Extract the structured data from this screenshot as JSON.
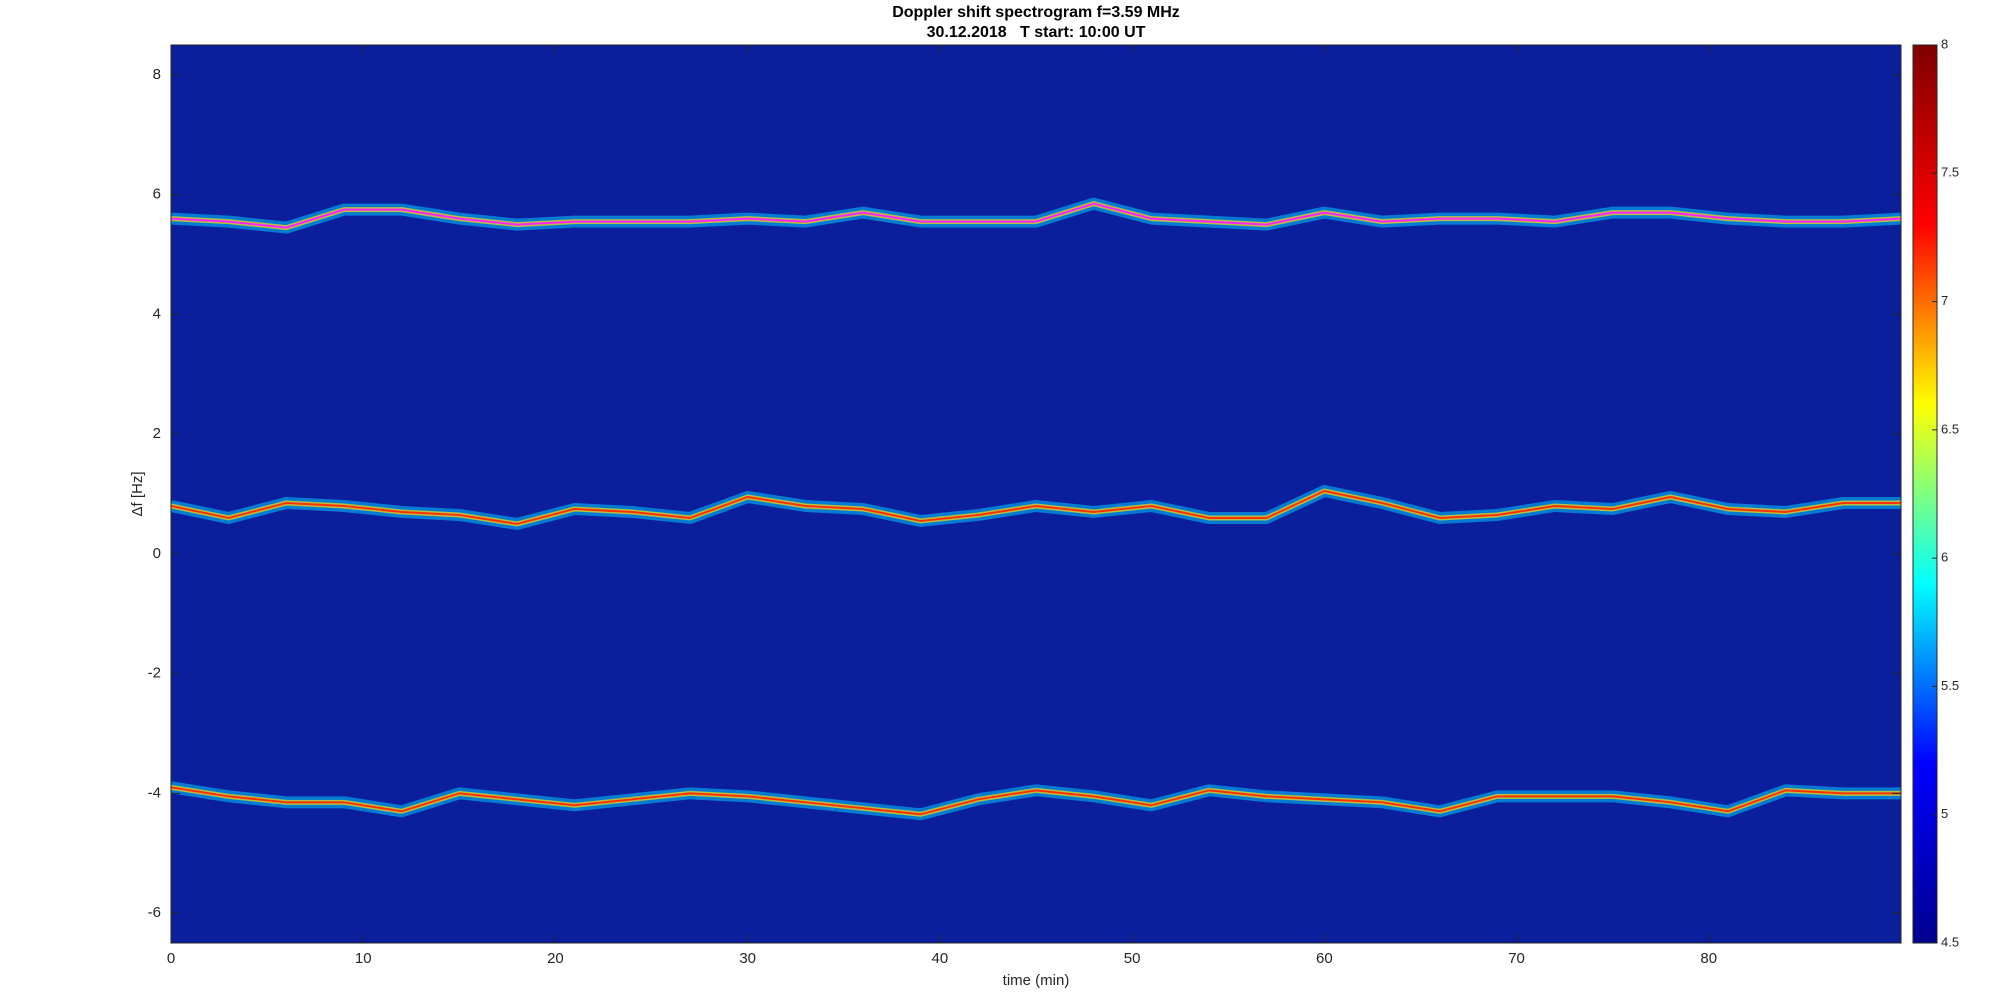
{
  "chart_data": {
    "type": "spectrogram",
    "title": "Doppler shift spectrogram f=3.59 MHz",
    "subtitle": "30.12.2018   T start: 10:00 UT",
    "x_label": "time (min)",
    "y_label": "Δf [Hz]",
    "xlim": [
      0,
      90
    ],
    "xticks": [
      0,
      10,
      20,
      30,
      40,
      50,
      60,
      70,
      80
    ],
    "ylim": [
      -6.5,
      8.5
    ],
    "yticks": [
      -6,
      -4,
      -2,
      0,
      2,
      4,
      6,
      8
    ],
    "clim": [
      4.5,
      8
    ],
    "cticks": [
      4.5,
      5,
      5.5,
      6,
      6.5,
      7,
      7.5,
      8
    ],
    "colormap": [
      "#00008f",
      "#0000ff",
      "#00ffff",
      "#ffff00",
      "#ff0000",
      "#800000"
    ],
    "x": [
      0,
      3,
      6,
      9,
      12,
      15,
      18,
      21,
      24,
      27,
      30,
      33,
      36,
      39,
      42,
      45,
      48,
      51,
      54,
      57,
      60,
      63,
      66,
      69,
      72,
      75,
      78,
      81,
      84,
      87,
      90
    ],
    "series": [
      {
        "color": "#ff20ff",
        "values": [
          5.6,
          5.55,
          5.45,
          5.75,
          5.75,
          5.6,
          5.5,
          5.55,
          5.55,
          5.55,
          5.6,
          5.55,
          5.7,
          5.55,
          5.55,
          5.55,
          5.85,
          5.6,
          5.55,
          5.5,
          5.7,
          5.55,
          5.6,
          5.6,
          5.55,
          5.7,
          5.7,
          5.6,
          5.55,
          5.55,
          5.6
        ]
      },
      {
        "color": "#ff3000",
        "values": [
          0.8,
          0.6,
          0.85,
          0.8,
          0.7,
          0.65,
          0.5,
          0.75,
          0.7,
          0.6,
          0.95,
          0.8,
          0.75,
          0.55,
          0.65,
          0.8,
          0.7,
          0.8,
          0.6,
          0.6,
          1.05,
          0.85,
          0.6,
          0.65,
          0.8,
          0.75,
          0.95,
          0.75,
          0.7,
          0.85,
          0.85
        ]
      },
      {
        "color": "#ff3000",
        "values": [
          -3.9,
          -4.05,
          -4.15,
          -4.15,
          -4.3,
          -4.0,
          -4.1,
          -4.2,
          -4.1,
          -4.0,
          -4.05,
          -4.15,
          -4.25,
          -4.35,
          -4.1,
          -3.95,
          -4.05,
          -4.2,
          -3.95,
          -4.05,
          -4.1,
          -4.15,
          -4.3,
          -4.05,
          -4.05,
          -4.05,
          -4.15,
          -4.3,
          -3.95,
          -4.0,
          -4.0
        ]
      }
    ]
  }
}
